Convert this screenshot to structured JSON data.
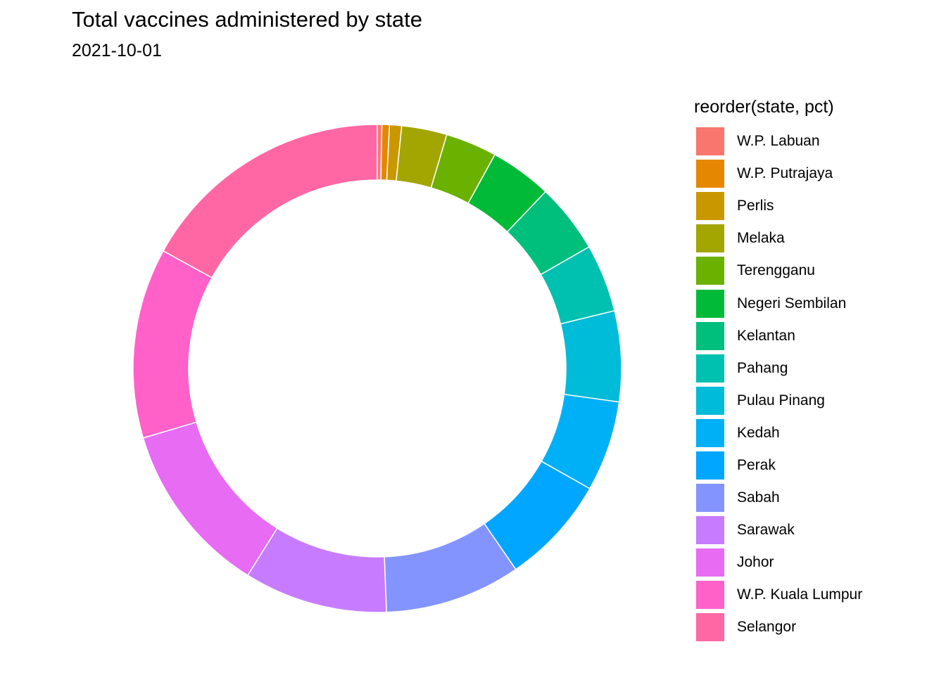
{
  "chart_data": {
    "type": "pie",
    "title": "Total vaccines administered by state",
    "subtitle": "2021-10-01",
    "legend_title": "reorder(state, pct)",
    "legend_position": "right",
    "donut": true,
    "categories": [
      "W.P. Labuan",
      "W.P. Putrajaya",
      "Perlis",
      "Melaka",
      "Terengganu",
      "Negeri Sembilan",
      "Kelantan",
      "Pahang",
      "Pulau Pinang",
      "Kedah",
      "Perak",
      "Sabah",
      "Sarawak",
      "Johor",
      "W.P. Kuala Lumpur",
      "Selangor"
    ],
    "values": [
      0.3,
      0.5,
      0.8,
      3.0,
      3.4,
      4.1,
      4.6,
      4.5,
      6.0,
      6.0,
      7.2,
      9.0,
      9.5,
      11.5,
      12.6,
      17.0
    ],
    "colors": [
      "#F8766D",
      "#E58700",
      "#C99800",
      "#A3A500",
      "#6BB100",
      "#00BA38",
      "#00BF7D",
      "#00C0AF",
      "#00BCD8",
      "#00B0F6",
      "#00A6FF",
      "#8494FF",
      "#C77CFF",
      "#E76BF3",
      "#FF61C9",
      "#FF67A4"
    ]
  }
}
